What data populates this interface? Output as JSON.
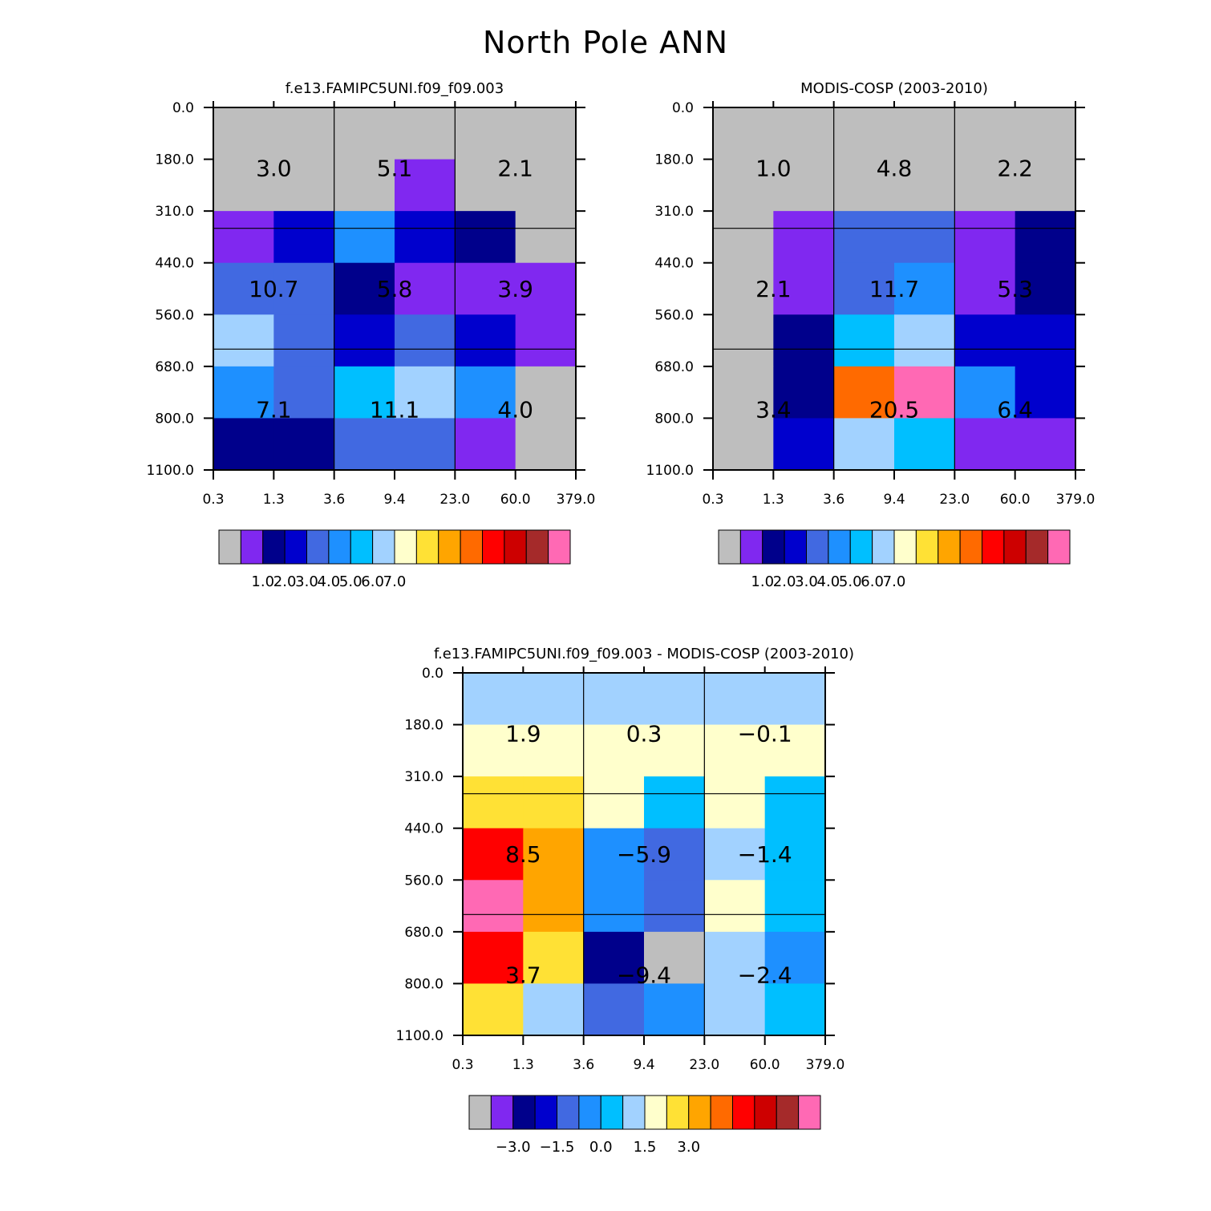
{
  "title": "North Pole ANN",
  "colors": [
    "#bebebe",
    "#8028f0",
    "#00008b",
    "#0000cd",
    "#4169e1",
    "#1e90ff",
    "#00bfff",
    "#a2d2ff",
    "#ffffcc",
    "#ffe135",
    "#ffa500",
    "#ff6a00",
    "#ff0000",
    "#cd0000",
    "#a52a2a",
    "#ff69b4"
  ],
  "chart_data": [
    {
      "type": "heatmap",
      "name": "model",
      "title": "f.e13.FAMIPC5UNI.f09_f09.003",
      "x_tick_labels": [
        "0.3",
        "1.3",
        "3.6",
        "9.4",
        "23.0",
        "60.0",
        "379.0"
      ],
      "y_tick_labels": [
        "0.0",
        "180.0",
        "310.0",
        "440.0",
        "560.0",
        "680.0",
        "800.0",
        "1100.0"
      ],
      "cell_color_index": [
        [
          0,
          0,
          0,
          0,
          0,
          0
        ],
        [
          0,
          0,
          0,
          1,
          0,
          0
        ],
        [
          1,
          3,
          5,
          3,
          2,
          0
        ],
        [
          4,
          4,
          2,
          1,
          1,
          1
        ],
        [
          7,
          4,
          3,
          4,
          3,
          1
        ],
        [
          5,
          4,
          6,
          7,
          5,
          0
        ],
        [
          2,
          2,
          4,
          4,
          1,
          0
        ]
      ],
      "box_labels": [
        [
          "3.0",
          "5.1",
          "2.1"
        ],
        [
          "10.7",
          "5.8",
          "3.9"
        ],
        [
          "7.1",
          "11.1",
          "4.0"
        ]
      ],
      "colorbar_labels": [
        "1.0",
        "2.0",
        "3.0",
        "4.0",
        "5.0",
        "6.0",
        "7.0"
      ]
    },
    {
      "type": "heatmap",
      "name": "obs",
      "title": "MODIS-COSP (2003-2010)",
      "x_tick_labels": [
        "0.3",
        "1.3",
        "3.6",
        "9.4",
        "23.0",
        "60.0",
        "379.0"
      ],
      "y_tick_labels": [
        "0.0",
        "180.0",
        "310.0",
        "440.0",
        "560.0",
        "680.0",
        "800.0",
        "1100.0"
      ],
      "cell_color_index": [
        [
          0,
          0,
          0,
          0,
          0,
          0
        ],
        [
          0,
          0,
          0,
          0,
          0,
          0
        ],
        [
          0,
          1,
          4,
          4,
          1,
          2
        ],
        [
          0,
          1,
          4,
          5,
          1,
          2
        ],
        [
          0,
          2,
          6,
          7,
          3,
          3
        ],
        [
          0,
          2,
          11,
          15,
          5,
          3
        ],
        [
          0,
          3,
          7,
          6,
          1,
          1
        ]
      ],
      "box_labels": [
        [
          "1.0",
          "4.8",
          "2.2"
        ],
        [
          "2.1",
          "11.7",
          "5.3"
        ],
        [
          "3.4",
          "20.5",
          "6.4"
        ]
      ],
      "colorbar_labels": [
        "1.0",
        "2.0",
        "3.0",
        "4.0",
        "5.0",
        "6.0",
        "7.0"
      ]
    },
    {
      "type": "heatmap",
      "name": "diff",
      "title": "f.e13.FAMIPC5UNI.f09_f09.003 - MODIS-COSP (2003-2010)",
      "x_tick_labels": [
        "0.3",
        "1.3",
        "3.6",
        "9.4",
        "23.0",
        "60.0",
        "379.0"
      ],
      "y_tick_labels": [
        "0.0",
        "180.0",
        "310.0",
        "440.0",
        "560.0",
        "680.0",
        "800.0",
        "1100.0"
      ],
      "cell_color_index": [
        [
          7,
          7,
          7,
          7,
          7,
          7
        ],
        [
          8,
          8,
          8,
          8,
          8,
          8
        ],
        [
          9,
          9,
          8,
          6,
          8,
          6
        ],
        [
          12,
          10,
          5,
          4,
          7,
          6
        ],
        [
          15,
          10,
          5,
          4,
          8,
          6
        ],
        [
          12,
          9,
          2,
          0,
          7,
          5
        ],
        [
          9,
          7,
          4,
          5,
          7,
          6
        ]
      ],
      "box_labels": [
        [
          "1.9",
          "0.3",
          "−0.1"
        ],
        [
          "8.5",
          "−5.9",
          "−1.4"
        ],
        [
          "3.7",
          "−9.4",
          "−2.4"
        ]
      ],
      "colorbar_labels": [
        "−3.0",
        "−1.5",
        "0.0",
        "1.5",
        "3.0"
      ]
    }
  ]
}
